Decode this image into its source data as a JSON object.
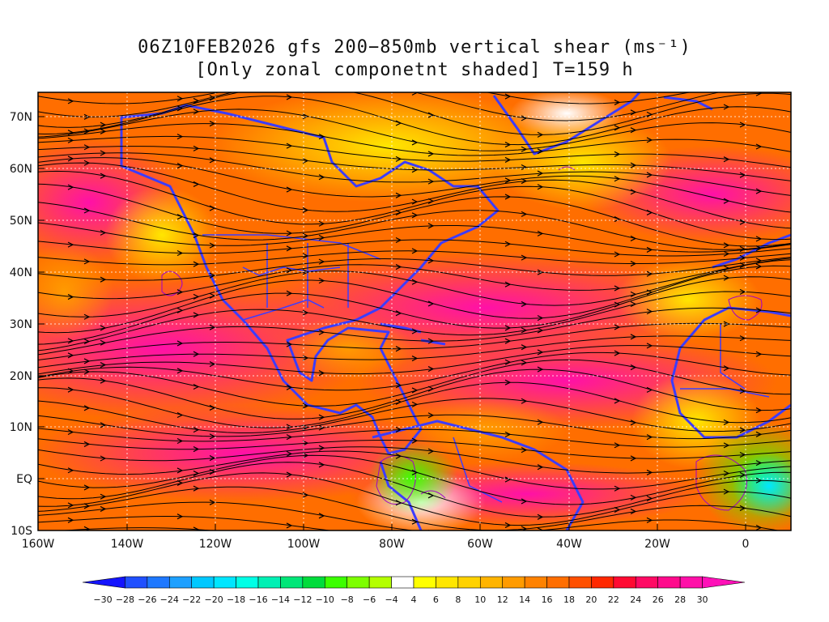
{
  "title": {
    "line1": "06Z10FEB2026 gfs 200−850mb vertical shear (ms⁻¹)",
    "line2": "[Only zonal componetnt shaded] T=159 h"
  },
  "axes": {
    "lat_labels": [
      "70N",
      "60N",
      "50N",
      "40N",
      "30N",
      "20N",
      "10N",
      "EQ",
      "10S"
    ],
    "lon_labels": [
      "160W",
      "140W",
      "120W",
      "100W",
      "80W",
      "60W",
      "40W",
      "20W",
      "0"
    ]
  },
  "colorbar": {
    "labels": [
      "−30",
      "−28",
      "−26",
      "−24",
      "−22",
      "−20",
      "−18",
      "−16",
      "−14",
      "−12",
      "−10",
      "−8",
      "−6",
      "−4",
      "4",
      "6",
      "8",
      "10",
      "12",
      "14",
      "16",
      "18",
      "20",
      "22",
      "24",
      "26",
      "28",
      "30"
    ],
    "colors": [
      "#1414ff",
      "#2050ff",
      "#1e78ff",
      "#1ea0ff",
      "#00c8ff",
      "#00e6ff",
      "#00ffe6",
      "#00f0b4",
      "#00e678",
      "#00dc3c",
      "#3cff00",
      "#7dff00",
      "#b4ff00",
      "#ffffff",
      "#ffff00",
      "#ffe600",
      "#ffd200",
      "#ffb400",
      "#ff9b00",
      "#ff8200",
      "#ff6e00",
      "#ff5000",
      "#ff2800",
      "#ff0a32",
      "#ff0a64",
      "#ff0a8c",
      "#ff10a8",
      "#ff10b8"
    ]
  },
  "map_colors": {
    "land_outline": "#3c3cff",
    "streamline": "#000000",
    "contour": "#a000c8"
  }
}
